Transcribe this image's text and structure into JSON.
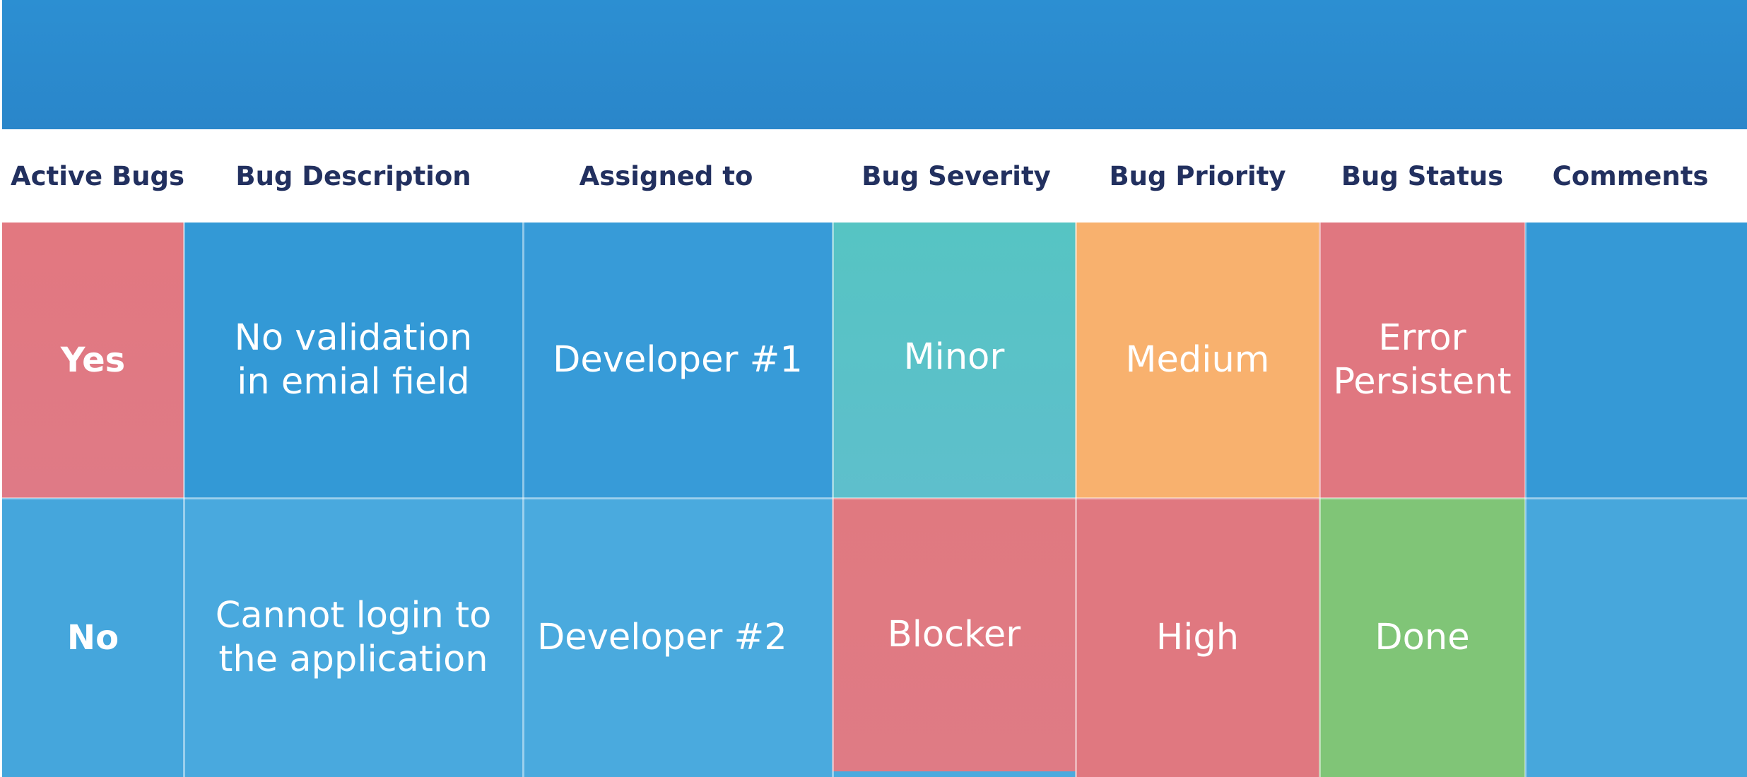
{
  "table": {
    "headers": [
      "Active Bugs",
      "Bug Description",
      "Assigned to",
      "Bug Severity",
      "Bug Priority",
      "Bug Status",
      "Comments"
    ],
    "rows": [
      {
        "active": "Yes",
        "description": "No validation\nin emial field",
        "assigned_to": "Developer #1",
        "severity": "Minor",
        "priority": "Medium",
        "status": "Error\nPersistent",
        "comments": ""
      },
      {
        "active": "No",
        "description": "Cannot login to\nthe  application",
        "assigned_to": "Developer #2",
        "severity": "Blocker",
        "priority": "High",
        "status": "Done",
        "comments": ""
      }
    ]
  },
  "colors": {
    "banner": "#2b8bcf",
    "header_text": "#22305f",
    "red": "#e07880",
    "blue_row1": "#3599d6",
    "blue_row2": "#47a7dc",
    "teal": "#5bc3c5",
    "orange": "#f8b16e",
    "green": "#80c577"
  }
}
